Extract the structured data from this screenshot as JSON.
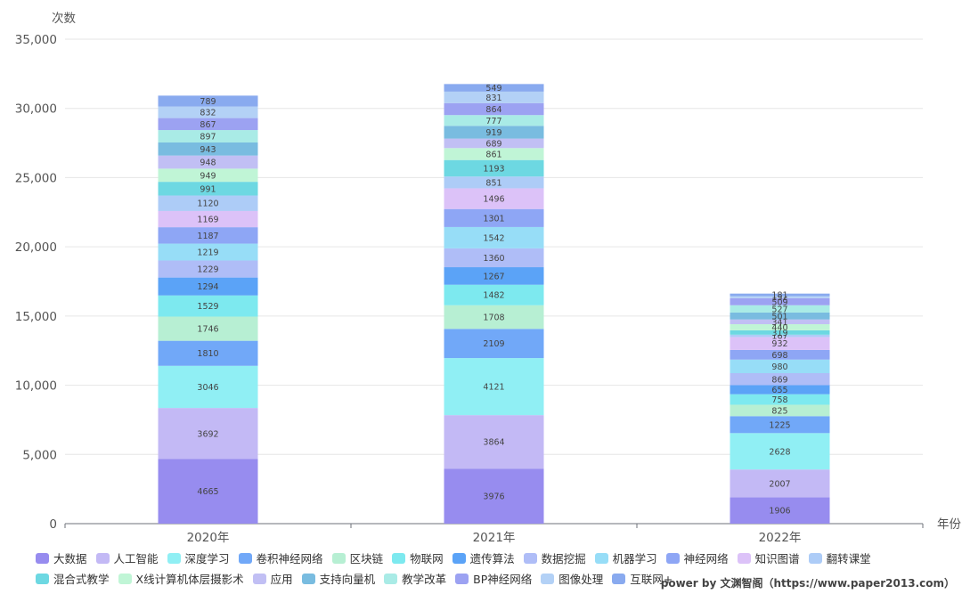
{
  "chart_data": {
    "type": "bar",
    "stacked": true,
    "ylabel": "次数",
    "xlabel": "年份",
    "ylim": [
      0,
      35000
    ],
    "yticks": [
      "0",
      "5,000",
      "10,000",
      "15,000",
      "20,000",
      "25,000",
      "30,000",
      "35,000"
    ],
    "categories": [
      "2020年",
      "2021年",
      "2022年"
    ],
    "grid": true,
    "legend_position": "bottom",
    "series": [
      {
        "name": "大数据",
        "color": "#978CEF",
        "values": [
          4665,
          3976,
          1906
        ]
      },
      {
        "name": "人工智能",
        "color": "#C3B9F5",
        "values": [
          3692,
          3864,
          2007
        ]
      },
      {
        "name": "深度学习",
        "color": "#90EFF4",
        "values": [
          3046,
          4121,
          2628
        ]
      },
      {
        "name": "卷积神经网络",
        "color": "#71A8F8",
        "values": [
          1810,
          2109,
          1225
        ]
      },
      {
        "name": "区块链",
        "color": "#B7EFD3",
        "values": [
          1746,
          1708,
          825
        ]
      },
      {
        "name": "物联网",
        "color": "#7DE9EF",
        "values": [
          1529,
          1482,
          758
        ]
      },
      {
        "name": "遗传算法",
        "color": "#5BA3F7",
        "values": [
          1294,
          1267,
          655
        ]
      },
      {
        "name": "数据挖掘",
        "color": "#AFBDF7",
        "values": [
          1229,
          1360,
          869
        ]
      },
      {
        "name": "机器学习",
        "color": "#97DDF7",
        "values": [
          1219,
          1542,
          980
        ]
      },
      {
        "name": "神经网络",
        "color": "#8EA6F5",
        "values": [
          1187,
          1301,
          698
        ]
      },
      {
        "name": "知识图谱",
        "color": "#DCC2F8",
        "values": [
          1169,
          1496,
          932
        ]
      },
      {
        "name": "翻转课堂",
        "color": "#ADCCF7",
        "values": [
          1120,
          851,
          167
        ]
      },
      {
        "name": "混合式教学",
        "color": "#6DD8E2",
        "values": [
          991,
          1193,
          319
        ]
      },
      {
        "name": "X线计算机体层摄影术",
        "color": "#C0F5D6",
        "values": [
          949,
          861,
          440
        ]
      },
      {
        "name": "应用",
        "color": "#C1BFF4",
        "values": [
          948,
          689,
          341
        ]
      },
      {
        "name": "支持向量机",
        "color": "#79BCE0",
        "values": [
          943,
          919,
          501
        ]
      },
      {
        "name": "教学改革",
        "color": "#A9EBE6",
        "values": [
          897,
          777,
          527
        ]
      },
      {
        "name": "BP神经网络",
        "color": "#9CA2F2",
        "values": [
          867,
          864,
          509
        ]
      },
      {
        "name": "图像处理",
        "color": "#B3D1F6",
        "values": [
          832,
          831,
          152
        ]
      },
      {
        "name": "互联网+",
        "color": "#89AAEF",
        "values": [
          789,
          549,
          181
        ]
      }
    ]
  },
  "footer": {
    "credit": "power by 文渊智阁（https://www.paper2013.com）"
  }
}
